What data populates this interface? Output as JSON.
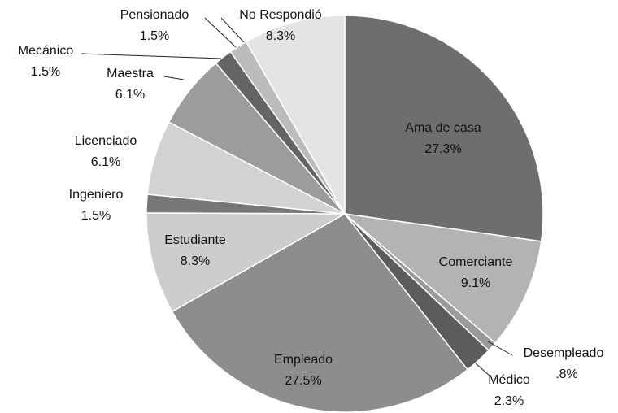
{
  "chart_data": {
    "type": "pie",
    "categories": [
      "Ama de casa",
      "Comerciante",
      "Desempleado",
      "Médico",
      "Empleado",
      "Estudiante",
      "Ingeniero",
      "Licenciado",
      "Maestra",
      "Mecánico",
      "Pensionado",
      "No Respondió"
    ],
    "values": [
      27.3,
      9.1,
      0.8,
      2.3,
      27.5,
      8.3,
      1.5,
      6.1,
      6.1,
      1.5,
      1.5,
      8.3
    ],
    "value_labels": [
      "27.3%",
      "9.1%",
      ".8%",
      "2.3%",
      "27.5%",
      "8.3%",
      "1.5%",
      "6.1%",
      "6.1%",
      "1.5%",
      "1.5%",
      "8.3%"
    ],
    "colors": [
      "#6e6e6e",
      "#b3b3b3",
      "#9a9a9a",
      "#5c5c5c",
      "#8d8d8d",
      "#cdcdcd",
      "#777777",
      "#d2d2d2",
      "#9c9c9c",
      "#646464",
      "#bcbcbc",
      "#e4e4e4"
    ]
  }
}
